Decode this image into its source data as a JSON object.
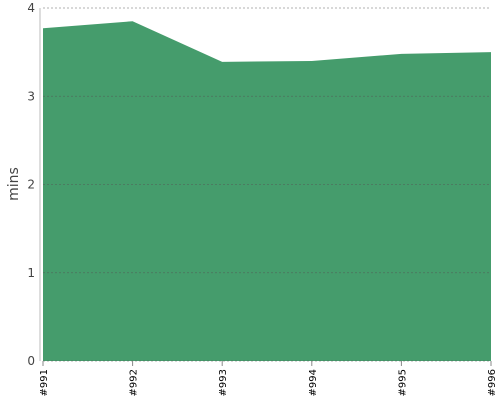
{
  "chart_data": {
    "type": "area",
    "y_label": "mins",
    "categories": [
      "#991",
      "#992",
      "#993",
      "#994",
      "#995",
      "#996"
    ],
    "values": [
      3.77,
      3.85,
      3.39,
      3.4,
      3.48,
      3.5
    ],
    "color": "#459c6c",
    "ylim": [
      0,
      4
    ],
    "yticks": [
      0,
      1,
      2,
      3,
      4
    ],
    "grid": true
  }
}
